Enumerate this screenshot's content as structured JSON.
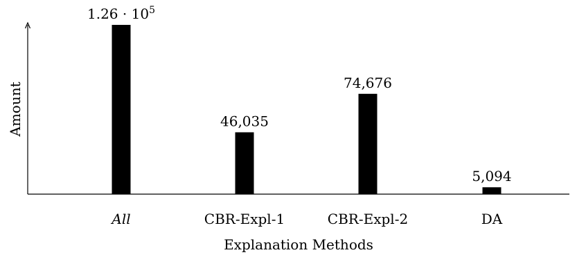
{
  "chart_data": {
    "type": "bar",
    "categories": [
      "All",
      "CBR-Expl-1",
      "CBR-Expl-2",
      "DA"
    ],
    "values": [
      126000,
      46035,
      74676,
      5094
    ],
    "data_labels": [
      "1.26 · 10",
      "46,035",
      "74,676",
      "5,094"
    ],
    "data_label_superscripts": [
      "5",
      "",
      "",
      ""
    ],
    "italic_categories": [
      true,
      false,
      false,
      false
    ],
    "xlabel": "Explanation Methods",
    "ylabel": "Amount",
    "ylim": [
      0,
      126000
    ],
    "grid": false,
    "legend": "none",
    "bar_color": "#000000"
  }
}
